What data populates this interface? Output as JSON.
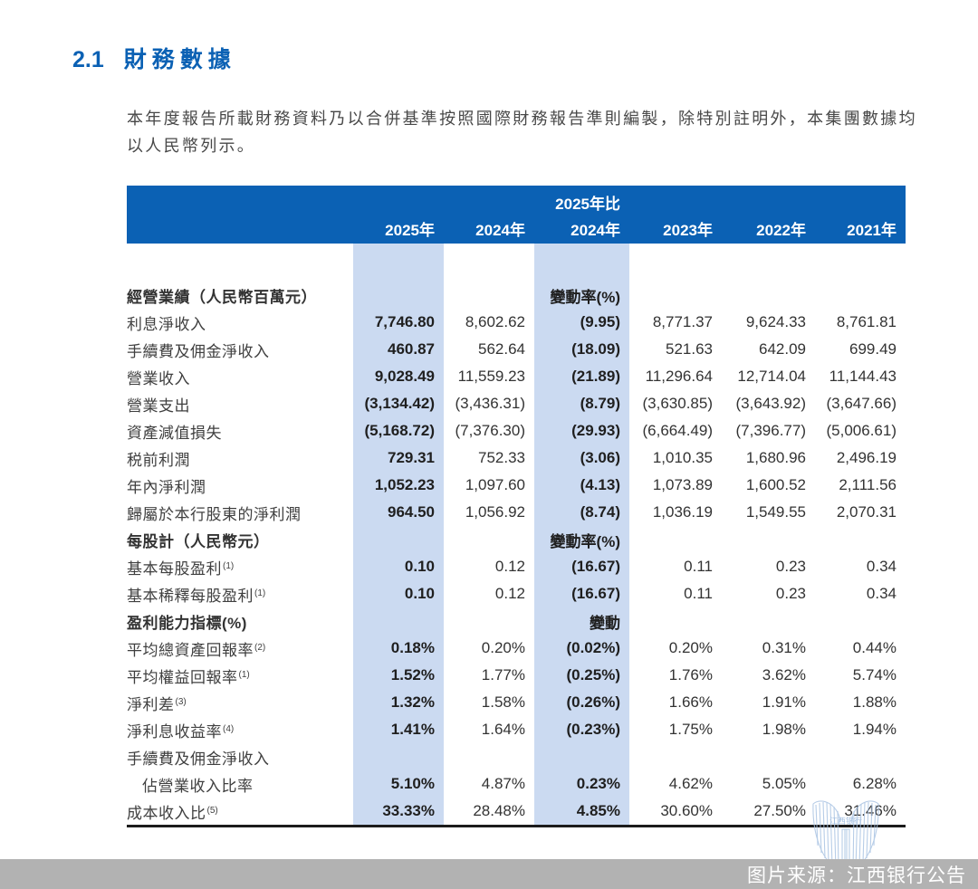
{
  "page": {
    "section_number": "2.1",
    "section_title": "財務數據",
    "intro": "本年度報告所載財務資料乃以合併基準按照國際財務報告準則編製，除特別註明外，本集團數據均以人民幣列示。"
  },
  "colors": {
    "header_blue": "#0b61b4",
    "highlight_blue": "#cbdaf1",
    "footer_gray": "#b2b2b2"
  },
  "table": {
    "header": {
      "compare_label": "2025年比",
      "columns": [
        "2025年",
        "2024年",
        "2024年",
        "2023年",
        "2022年",
        "2021年"
      ]
    },
    "rows": [
      {
        "spacer": true
      },
      {
        "section": true,
        "label": "經營業績（人民幣百萬元）",
        "values": [
          "",
          "",
          "變動率(%)",
          "",
          "",
          ""
        ]
      },
      {
        "label": "利息淨收入",
        "values": [
          "7,746.80",
          "8,602.62",
          "(9.95)",
          "8,771.37",
          "9,624.33",
          "8,761.81"
        ]
      },
      {
        "label": "手續費及佣金淨收入",
        "values": [
          "460.87",
          "562.64",
          "(18.09)",
          "521.63",
          "642.09",
          "699.49"
        ]
      },
      {
        "label": "營業收入",
        "values": [
          "9,028.49",
          "11,559.23",
          "(21.89)",
          "11,296.64",
          "12,714.04",
          "11,144.43"
        ]
      },
      {
        "label": "營業支出",
        "values": [
          "(3,134.42)",
          "(3,436.31)",
          "(8.79)",
          "(3,630.85)",
          "(3,643.92)",
          "(3,647.66)"
        ]
      },
      {
        "label": "資產減值損失",
        "values": [
          "(5,168.72)",
          "(7,376.30)",
          "(29.93)",
          "(6,664.49)",
          "(7,396.77)",
          "(5,006.61)"
        ]
      },
      {
        "label": "税前利潤",
        "values": [
          "729.31",
          "752.33",
          "(3.06)",
          "1,010.35",
          "1,680.96",
          "2,496.19"
        ]
      },
      {
        "label": "年內淨利潤",
        "values": [
          "1,052.23",
          "1,097.60",
          "(4.13)",
          "1,073.89",
          "1,600.52",
          "2,111.56"
        ]
      },
      {
        "label": "歸屬於本行股東的淨利潤",
        "values": [
          "964.50",
          "1,056.92",
          "(8.74)",
          "1,036.19",
          "1,549.55",
          "2,070.31"
        ]
      },
      {
        "section": true,
        "label": "每股計（人民幣元）",
        "values": [
          "",
          "",
          "變動率(%)",
          "",
          "",
          ""
        ]
      },
      {
        "label": "基本每股盈利",
        "sup": "(1)",
        "values": [
          "0.10",
          "0.12",
          "(16.67)",
          "0.11",
          "0.23",
          "0.34"
        ]
      },
      {
        "label": "基本稀釋每股盈利",
        "sup": "(1)",
        "values": [
          "0.10",
          "0.12",
          "(16.67)",
          "0.11",
          "0.23",
          "0.34"
        ]
      },
      {
        "section": true,
        "label": "盈利能力指標(%)",
        "values": [
          "",
          "",
          "變動",
          "",
          "",
          ""
        ]
      },
      {
        "label": "平均總資產回報率",
        "sup": "(2)",
        "values": [
          "0.18%",
          "0.20%",
          "(0.02%)",
          "0.20%",
          "0.31%",
          "0.44%"
        ]
      },
      {
        "label": "平均權益回報率",
        "sup": "(1)",
        "values": [
          "1.52%",
          "1.77%",
          "(0.25%)",
          "1.76%",
          "3.62%",
          "5.74%"
        ]
      },
      {
        "label": "淨利差",
        "sup": "(3)",
        "values": [
          "1.32%",
          "1.58%",
          "(0.26%)",
          "1.66%",
          "1.91%",
          "1.88%"
        ]
      },
      {
        "label": "淨利息收益率",
        "sup": "(4)",
        "values": [
          "1.41%",
          "1.64%",
          "(0.23%)",
          "1.75%",
          "1.98%",
          "1.94%"
        ]
      },
      {
        "label": "手續費及佣金淨收入",
        "values": [
          "",
          "",
          "",
          "",
          "",
          ""
        ]
      },
      {
        "label": "佔營業收入比率",
        "indent": true,
        "values": [
          "5.10%",
          "4.87%",
          "0.23%",
          "4.62%",
          "5.05%",
          "6.28%"
        ]
      },
      {
        "label": "成本收入比",
        "sup": "(5)",
        "values": [
          "33.33%",
          "28.48%",
          "4.85%",
          "30.60%",
          "27.50%",
          "31.46%"
        ]
      }
    ]
  },
  "watermark": {
    "bank_name": "江西银行"
  },
  "footer": {
    "source_label": "图片来源：江西银行公告"
  }
}
